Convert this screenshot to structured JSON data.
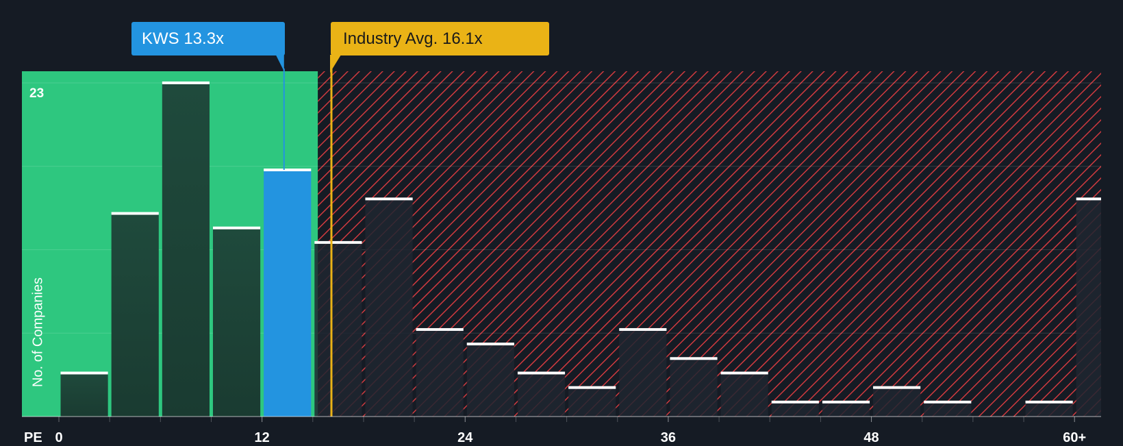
{
  "chart_data": {
    "type": "bar",
    "title": "",
    "xlabel": "PE",
    "ylabel": "No. of Companies",
    "x_tick_labels": [
      "0",
      "12",
      "24",
      "36",
      "48",
      "60+"
    ],
    "x_tick_values": [
      0,
      12,
      24,
      36,
      48,
      60
    ],
    "xlim": [
      -2.2,
      61.6
    ],
    "ylim": [
      0,
      23.8
    ],
    "y_max_label": "23",
    "gridlines_y": [
      5.75,
      11.5,
      17.25,
      23
    ],
    "bin_width": 3,
    "bars": [
      {
        "start": 0,
        "value": 3,
        "highlight": false
      },
      {
        "start": 3,
        "value": 14,
        "highlight": false
      },
      {
        "start": 6,
        "value": 23,
        "highlight": false
      },
      {
        "start": 9,
        "value": 13,
        "highlight": false
      },
      {
        "start": 12,
        "value": 17,
        "highlight": true
      },
      {
        "start": 15,
        "value": 12,
        "highlight": false
      },
      {
        "start": 18,
        "value": 15,
        "highlight": false
      },
      {
        "start": 21,
        "value": 6,
        "highlight": false
      },
      {
        "start": 24,
        "value": 5,
        "highlight": false
      },
      {
        "start": 27,
        "value": 3,
        "highlight": false
      },
      {
        "start": 30,
        "value": 2,
        "highlight": false
      },
      {
        "start": 33,
        "value": 6,
        "highlight": false
      },
      {
        "start": 36,
        "value": 4,
        "highlight": false
      },
      {
        "start": 39,
        "value": 3,
        "highlight": false
      },
      {
        "start": 42,
        "value": 1,
        "highlight": false
      },
      {
        "start": 45,
        "value": 1,
        "highlight": false
      },
      {
        "start": 48,
        "value": 2,
        "highlight": false
      },
      {
        "start": 51,
        "value": 1,
        "highlight": false
      },
      {
        "start": 54,
        "value": 0,
        "highlight": false
      },
      {
        "start": 57,
        "value": 1,
        "highlight": false
      },
      {
        "start": 60,
        "value": 15,
        "highlight": false
      }
    ],
    "good_value_zone_end": 15.3,
    "company": {
      "name": "KWS",
      "value": 13.3,
      "label": "KWS 13.3x"
    },
    "industry_avg": {
      "value": 16.1,
      "label": "Industry Avg. 16.1x"
    },
    "colors": {
      "background": "#151b24",
      "good_zone": "#2ec77f",
      "bad_hatch": "#d13a3f",
      "bar_in_zone": "#1f4a3c",
      "bar_out_zone": "#1f2630",
      "bar_highlight": "#2394e0",
      "bar_top": "#ffffff",
      "company_callout": "#2394e0",
      "industry_callout": "#eab316"
    }
  }
}
